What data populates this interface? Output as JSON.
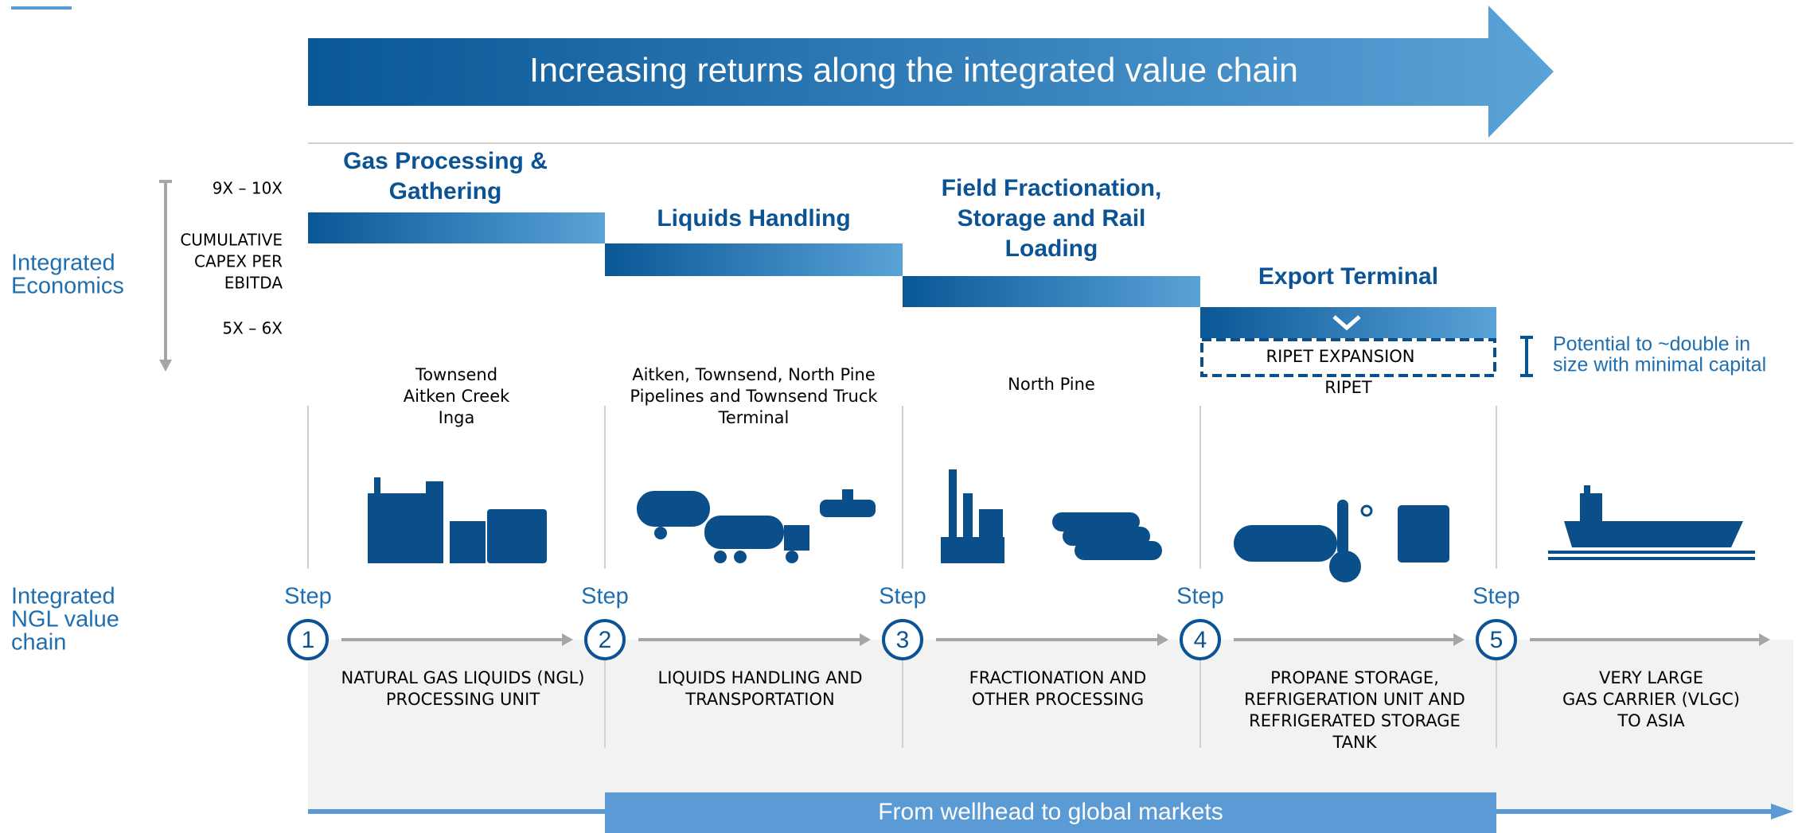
{
  "header": {
    "title": "Increasing returns along the integrated value chain"
  },
  "economics": {
    "label": [
      "Integrated",
      "Economics"
    ],
    "high": "9X – 10X",
    "metric": [
      "CUMULATIVE",
      "CAPEX PER",
      "EBITDA"
    ],
    "low": "5X – 6X"
  },
  "stages": [
    {
      "title": [
        "Gas Processing &",
        "Gathering"
      ],
      "locations": [
        "Townsend",
        "Aitken Creek",
        "Inga"
      ]
    },
    {
      "title": [
        "Liquids Handling"
      ],
      "locations": [
        "Aitken, Townsend, North Pine",
        "Pipelines and Townsend Truck",
        "Terminal"
      ]
    },
    {
      "title": [
        "Field Fractionation,",
        "Storage and Rail",
        "Loading"
      ],
      "locations": [
        "North Pine"
      ]
    },
    {
      "title": [
        "Export Terminal"
      ],
      "locations": [
        "RIPET"
      ]
    }
  ],
  "expansion": {
    "box": "RIPET EXPANSION",
    "note": [
      "Potential to ~double in",
      "size with minimal capital"
    ]
  },
  "chain": {
    "label": [
      "Integrated",
      "NGL value",
      "chain"
    ],
    "steps": [
      {
        "word": "Step",
        "number": 1,
        "description": [
          "NATURAL GAS LIQUIDS (NGL)",
          "PROCESSING UNIT"
        ]
      },
      {
        "word": "Step",
        "number": 2,
        "description": [
          "LIQUIDS HANDLING AND",
          "TRANSPORTATION"
        ]
      },
      {
        "word": "Step",
        "number": 3,
        "description": [
          "FRACTIONATION AND",
          "OTHER PROCESSING"
        ]
      },
      {
        "word": "Step",
        "number": 4,
        "description": [
          "PROPANE STORAGE,",
          "REFRIGERATION UNIT AND",
          "REFRIGERATED STORAGE",
          "TANK"
        ]
      },
      {
        "word": "Step",
        "number": 5,
        "description": [
          "VERY LARGE",
          "GAS CARRIER (VLGC)",
          "TO ASIA"
        ]
      }
    ]
  },
  "footer": "From wellhead to global markets"
}
